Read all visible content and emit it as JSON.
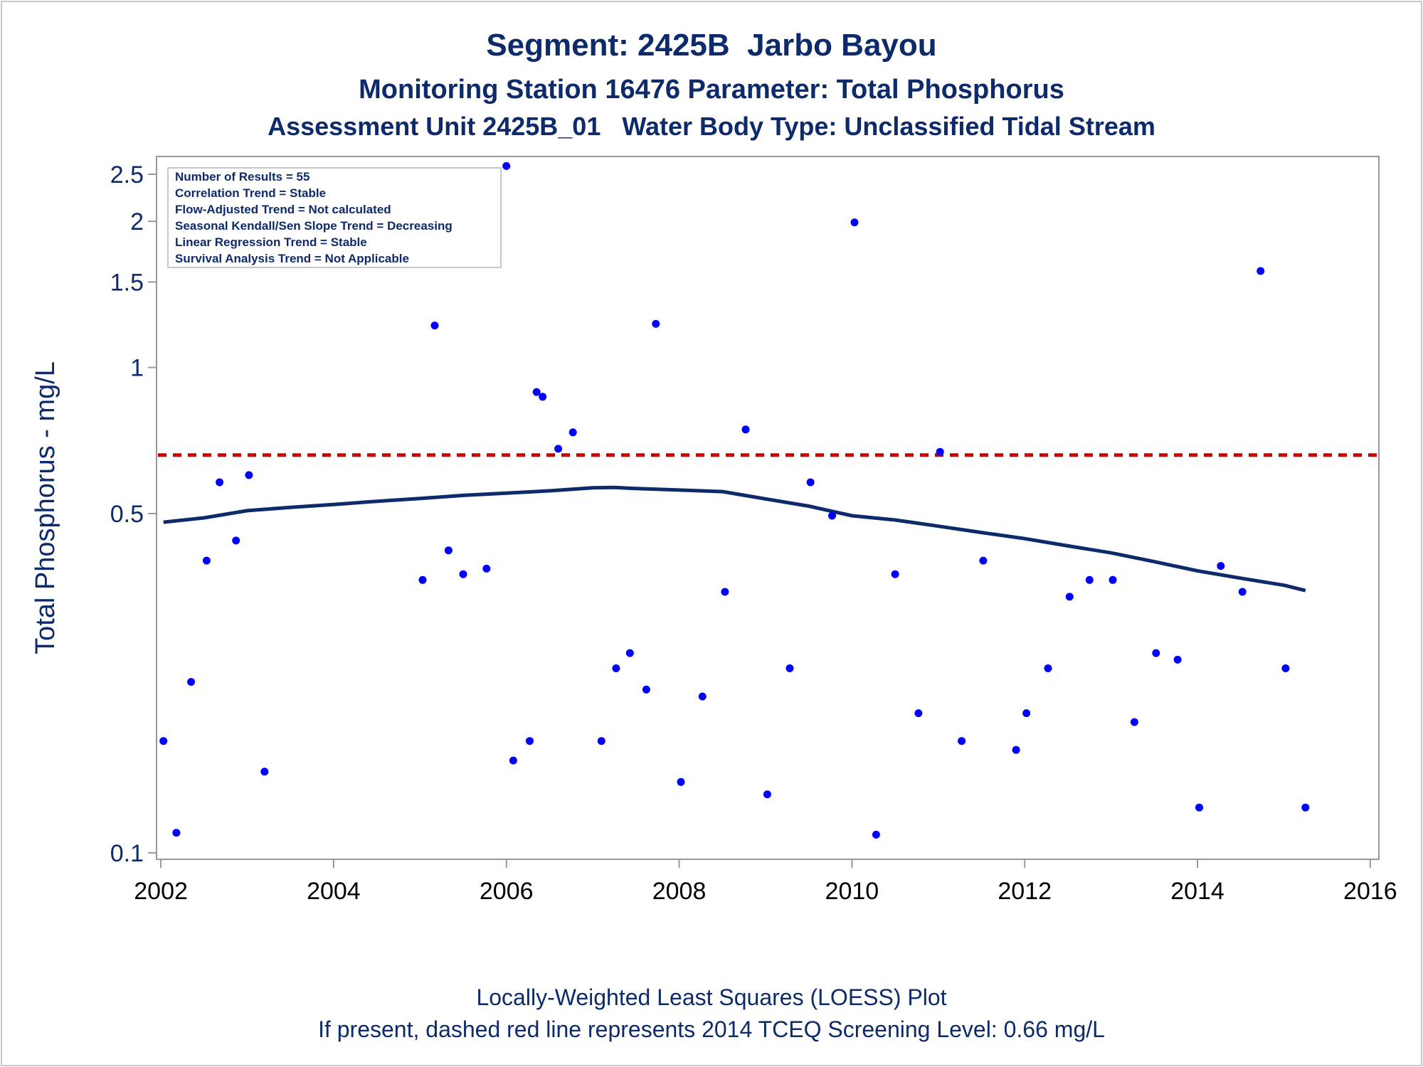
{
  "chart_data": {
    "type": "scatter",
    "title": "Segment: 2425B  Jarbo Bayou",
    "subtitle_1": "Monitoring Station 16476 Parameter: Total Phosphorus",
    "subtitle_2": "Assessment Unit 2425B_01   Water Body Type: Unclassified Tidal Stream",
    "ylabel": "Total Phosphorus - mg/L",
    "xlabel": "",
    "footnote_1": "Locally-Weighted Least Squares (LOESS) Plot",
    "footnote_2": "If present, dashed red line represents 2014 TCEQ Screening Level: 0.66 mg/L",
    "y_scale": "log",
    "xlim": [
      2001.95,
      2016.1
    ],
    "ylim": [
      0.097,
      2.72
    ],
    "x_ticks": [
      2002,
      2004,
      2006,
      2008,
      2010,
      2012,
      2014,
      2016
    ],
    "y_ticks": [
      {
        "value": 0.1,
        "label": "0.1"
      },
      {
        "value": 0.5,
        "label": "0.5"
      },
      {
        "value": 1,
        "label": "1"
      },
      {
        "value": 1.5,
        "label": "1.5"
      },
      {
        "value": 2,
        "label": "2"
      },
      {
        "value": 2.5,
        "label": "2.5"
      }
    ],
    "legend_placement": "top-left",
    "info_box": [
      "Number of Results = 55",
      "Correlation Trend = Stable",
      "Flow-Adjusted Trend = Not calculated",
      "Seasonal Kendall/Sen Slope Trend = Decreasing",
      "Linear Regression Trend = Stable",
      "Survival Analysis Trend = Not Applicable"
    ],
    "screening_level": 0.66,
    "colors": {
      "points": "#0000ff",
      "loess": "#0d2a6b",
      "screening": "#cc0000",
      "text": "#0d2a6b",
      "frame": "#999999"
    },
    "series": [
      {
        "kind": "observations",
        "points": [
          {
            "x": 2002.03,
            "y": 0.17
          },
          {
            "x": 2002.18,
            "y": 0.11
          },
          {
            "x": 2002.35,
            "y": 0.225
          },
          {
            "x": 2002.53,
            "y": 0.4
          },
          {
            "x": 2002.68,
            "y": 0.58
          },
          {
            "x": 2002.87,
            "y": 0.44
          },
          {
            "x": 2003.02,
            "y": 0.6
          },
          {
            "x": 2003.2,
            "y": 0.147
          },
          {
            "x": 2005.03,
            "y": 0.365
          },
          {
            "x": 2005.17,
            "y": 1.22
          },
          {
            "x": 2005.33,
            "y": 0.42
          },
          {
            "x": 2005.5,
            "y": 0.375
          },
          {
            "x": 2005.77,
            "y": 0.385
          },
          {
            "x": 2006.0,
            "y": 2.6
          },
          {
            "x": 2006.08,
            "y": 0.155
          },
          {
            "x": 2006.27,
            "y": 0.17
          },
          {
            "x": 2006.35,
            "y": 0.89
          },
          {
            "x": 2006.42,
            "y": 0.87
          },
          {
            "x": 2006.6,
            "y": 0.68
          },
          {
            "x": 2006.77,
            "y": 0.735
          },
          {
            "x": 2007.1,
            "y": 0.17
          },
          {
            "x": 2007.27,
            "y": 0.24
          },
          {
            "x": 2007.43,
            "y": 0.258
          },
          {
            "x": 2007.62,
            "y": 0.217
          },
          {
            "x": 2007.73,
            "y": 1.23
          },
          {
            "x": 2008.02,
            "y": 0.14
          },
          {
            "x": 2008.27,
            "y": 0.21
          },
          {
            "x": 2008.53,
            "y": 0.345
          },
          {
            "x": 2008.77,
            "y": 0.745
          },
          {
            "x": 2009.02,
            "y": 0.132
          },
          {
            "x": 2009.28,
            "y": 0.24
          },
          {
            "x": 2009.52,
            "y": 0.58
          },
          {
            "x": 2009.77,
            "y": 0.495
          },
          {
            "x": 2010.03,
            "y": 1.99
          },
          {
            "x": 2010.28,
            "y": 0.109
          },
          {
            "x": 2010.5,
            "y": 0.375
          },
          {
            "x": 2010.77,
            "y": 0.194
          },
          {
            "x": 2011.02,
            "y": 0.67
          },
          {
            "x": 2011.27,
            "y": 0.17
          },
          {
            "x": 2011.52,
            "y": 0.4
          },
          {
            "x": 2011.9,
            "y": 0.163
          },
          {
            "x": 2012.02,
            "y": 0.194
          },
          {
            "x": 2012.27,
            "y": 0.24
          },
          {
            "x": 2012.52,
            "y": 0.337
          },
          {
            "x": 2012.75,
            "y": 0.365
          },
          {
            "x": 2013.02,
            "y": 0.365
          },
          {
            "x": 2013.27,
            "y": 0.186
          },
          {
            "x": 2013.52,
            "y": 0.258
          },
          {
            "x": 2013.77,
            "y": 0.25
          },
          {
            "x": 2014.02,
            "y": 0.124
          },
          {
            "x": 2014.27,
            "y": 0.39
          },
          {
            "x": 2014.52,
            "y": 0.345
          },
          {
            "x": 2014.73,
            "y": 1.58
          },
          {
            "x": 2015.02,
            "y": 0.24
          },
          {
            "x": 2015.25,
            "y": 0.124
          }
        ]
      },
      {
        "kind": "loess",
        "points": [
          {
            "x": 2002.03,
            "y": 0.48
          },
          {
            "x": 2002.5,
            "y": 0.49
          },
          {
            "x": 2003.0,
            "y": 0.507
          },
          {
            "x": 2003.5,
            "y": 0.515
          },
          {
            "x": 2004.0,
            "y": 0.522
          },
          {
            "x": 2004.5,
            "y": 0.53
          },
          {
            "x": 2005.0,
            "y": 0.537
          },
          {
            "x": 2005.5,
            "y": 0.545
          },
          {
            "x": 2006.0,
            "y": 0.551
          },
          {
            "x": 2006.5,
            "y": 0.557
          },
          {
            "x": 2007.0,
            "y": 0.565
          },
          {
            "x": 2007.25,
            "y": 0.566
          },
          {
            "x": 2007.5,
            "y": 0.563
          },
          {
            "x": 2008.0,
            "y": 0.559
          },
          {
            "x": 2008.5,
            "y": 0.555
          },
          {
            "x": 2009.0,
            "y": 0.536
          },
          {
            "x": 2009.5,
            "y": 0.518
          },
          {
            "x": 2010.0,
            "y": 0.495
          },
          {
            "x": 2010.5,
            "y": 0.485
          },
          {
            "x": 2011.0,
            "y": 0.471
          },
          {
            "x": 2011.5,
            "y": 0.457
          },
          {
            "x": 2012.0,
            "y": 0.444
          },
          {
            "x": 2012.5,
            "y": 0.429
          },
          {
            "x": 2013.0,
            "y": 0.415
          },
          {
            "x": 2013.5,
            "y": 0.398
          },
          {
            "x": 2014.0,
            "y": 0.381
          },
          {
            "x": 2014.5,
            "y": 0.368
          },
          {
            "x": 2015.0,
            "y": 0.356
          },
          {
            "x": 2015.25,
            "y": 0.347
          }
        ]
      }
    ]
  }
}
